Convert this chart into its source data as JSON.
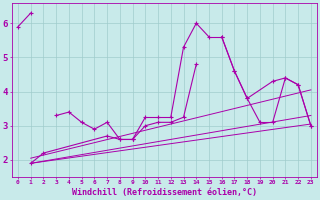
{
  "background_color": "#c8eaea",
  "grid_color": "#a0cccc",
  "line_color": "#aa00aa",
  "xlabel": "Windchill (Refroidissement éolien,°C)",
  "xlabel_fontsize": 6.0,
  "ylabel_ticks": [
    2,
    3,
    4,
    5,
    6
  ],
  "xlim": [
    -0.5,
    23.5
  ],
  "ylim": [
    1.5,
    6.6
  ],
  "series_main": [
    5.9,
    6.3,
    null,
    3.3,
    3.4,
    3.1,
    2.9,
    3.1,
    2.6,
    2.6,
    3.25,
    3.25,
    3.25,
    5.3,
    6.0,
    5.6,
    5.6,
    4.6,
    3.8,
    3.1,
    3.1,
    4.4,
    4.2,
    3.0
  ],
  "series_low": [
    [
      1,
      1.9
    ],
    [
      2,
      2.2
    ],
    [
      7,
      2.7
    ],
    [
      8,
      2.6
    ],
    [
      9,
      2.6
    ]
  ],
  "series_mid": [
    [
      9,
      2.6
    ],
    [
      10,
      3.0
    ],
    [
      11,
      3.1
    ],
    [
      12,
      3.1
    ],
    [
      13,
      3.25
    ],
    [
      14,
      4.8
    ]
  ],
  "series_right": [
    [
      16,
      5.6
    ],
    [
      17,
      4.6
    ],
    [
      18,
      3.8
    ],
    [
      20,
      4.3
    ],
    [
      21,
      4.4
    ],
    [
      22,
      4.2
    ],
    [
      23,
      3.0
    ]
  ],
  "trend_lines": [
    {
      "x": [
        1,
        23
      ],
      "y": [
        1.9,
        3.05
      ]
    },
    {
      "x": [
        1,
        23
      ],
      "y": [
        1.9,
        3.3
      ]
    },
    {
      "x": [
        1,
        23
      ],
      "y": [
        2.05,
        4.05
      ]
    }
  ]
}
